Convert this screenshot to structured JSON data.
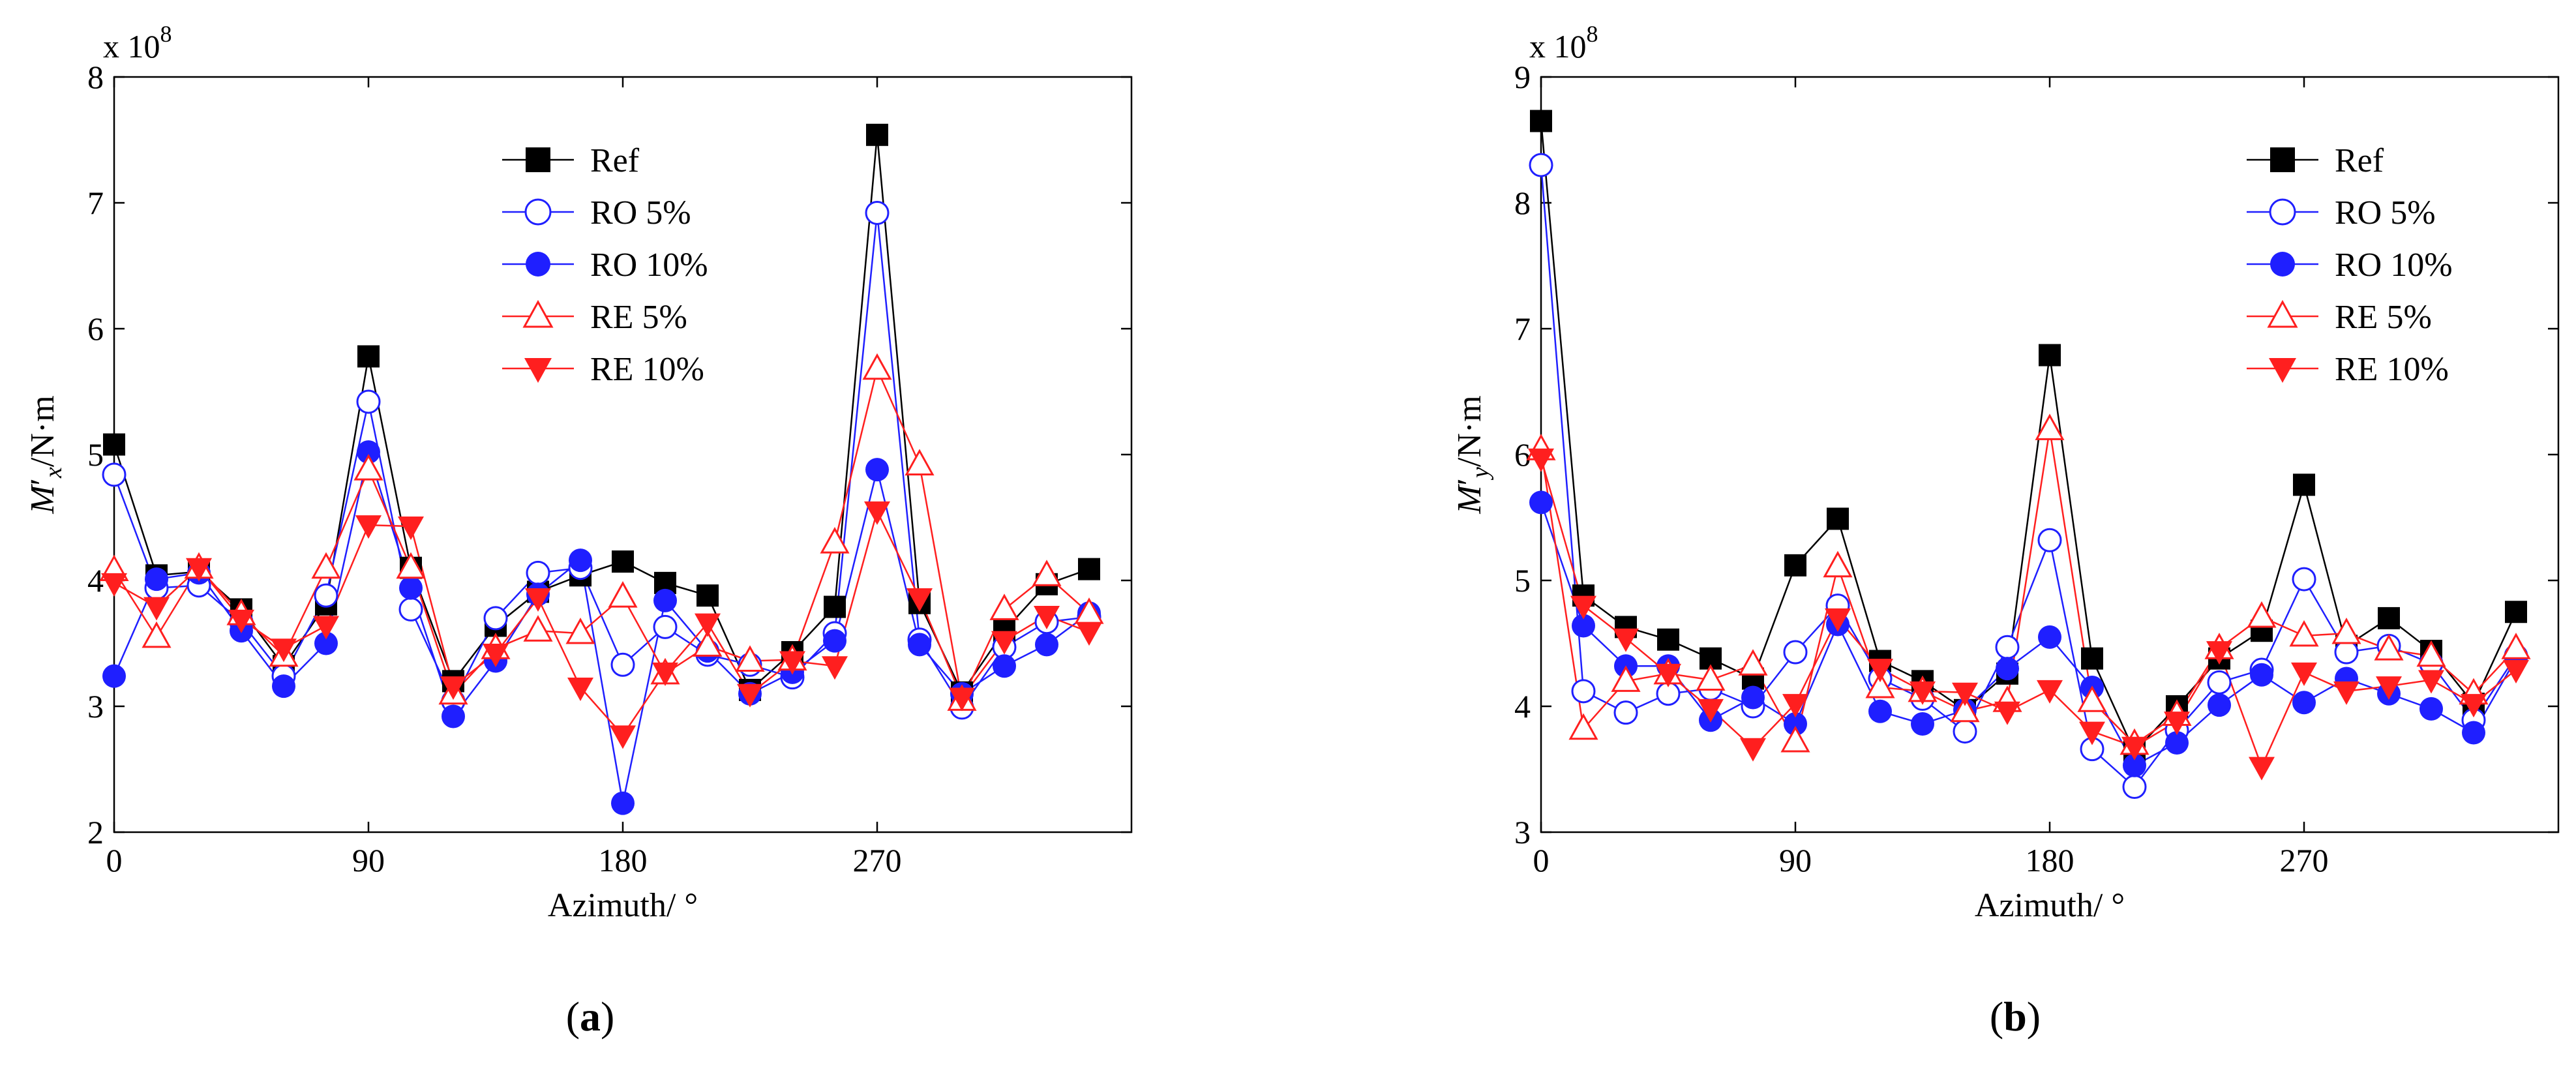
{
  "colors": {
    "ref": "#000000",
    "ro": "#1f1fff",
    "re": "#ff1f1f"
  },
  "markers": {
    "ref": "square-filled",
    "ro5": "circle-open",
    "ro10": "circle-filled",
    "re5": "triangle-up-open",
    "re10": "triangle-down-filled"
  },
  "chart_data": [
    {
      "panel_label_parts": [
        "(",
        "a",
        ")"
      ],
      "type": "line",
      "ylabel_parts": [
        "M",
        "′",
        "x",
        "/N·m"
      ],
      "xlabel": "Azimuth/ °",
      "exponent_base": "x 10",
      "exponent_power": "8",
      "xlim": [
        0,
        360
      ],
      "ylim": [
        2,
        8
      ],
      "x_ticks": [
        0,
        90,
        180,
        270
      ],
      "y_ticks": [
        2,
        3,
        4,
        5,
        6,
        7,
        8
      ],
      "legend_position": "top-center",
      "x": [
        0,
        15,
        30,
        45,
        60,
        75,
        90,
        105,
        120,
        135,
        150,
        165,
        180,
        195,
        210,
        225,
        240,
        255,
        270,
        285,
        300,
        315,
        330,
        345
      ],
      "series": [
        {
          "name": "Ref",
          "color_key": "ref",
          "marker_key": "ref",
          "values": [
            5.08,
            4.04,
            4.07,
            3.77,
            3.32,
            3.81,
            5.78,
            4.1,
            3.2,
            3.64,
            3.91,
            4.04,
            4.15,
            3.98,
            3.88,
            3.13,
            3.43,
            3.79,
            7.54,
            3.82,
            3.11,
            3.6,
            3.97,
            4.09
          ]
        },
        {
          "name": "RO 5%",
          "color_key": "ro",
          "marker_key": "ro5",
          "values": [
            4.84,
            3.94,
            3.96,
            3.67,
            3.24,
            3.88,
            5.42,
            3.77,
            3.04,
            3.7,
            4.06,
            4.1,
            3.33,
            3.63,
            3.41,
            3.33,
            3.23,
            3.58,
            6.92,
            3.53,
            2.99,
            3.47,
            3.67,
            3.71
          ]
        },
        {
          "name": "RO 10%",
          "color_key": "ro",
          "marker_key": "ro10",
          "values": [
            3.24,
            4.01,
            4.06,
            3.6,
            3.16,
            3.5,
            5.02,
            3.94,
            2.92,
            3.36,
            3.89,
            4.16,
            2.23,
            3.84,
            3.44,
            3.1,
            3.27,
            3.52,
            4.88,
            3.49,
            3.1,
            3.32,
            3.49,
            3.74
          ]
        },
        {
          "name": "RE 5%",
          "color_key": "re",
          "marker_key": "re5",
          "values": [
            4.08,
            3.55,
            4.1,
            3.73,
            3.4,
            4.1,
            4.88,
            4.1,
            3.1,
            3.46,
            3.6,
            3.58,
            3.87,
            3.26,
            3.48,
            3.36,
            3.37,
            4.3,
            5.68,
            4.92,
            3.05,
            3.77,
            4.04,
            3.74
          ]
        },
        {
          "name": "RE 10%",
          "color_key": "re",
          "marker_key": "re10",
          "values": [
            3.98,
            3.79,
            4.1,
            3.69,
            3.46,
            3.64,
            4.44,
            4.43,
            3.16,
            3.42,
            3.86,
            3.15,
            2.77,
            3.27,
            3.66,
            3.1,
            3.36,
            3.32,
            4.55,
            3.86,
            3.07,
            3.52,
            3.72,
            3.59
          ]
        }
      ]
    },
    {
      "panel_label_parts": [
        "(",
        "b",
        ")"
      ],
      "type": "line",
      "ylabel_parts": [
        "M",
        "′",
        "y",
        "/N·m"
      ],
      "xlabel": "Azimuth/ °",
      "exponent_base": "x 10",
      "exponent_power": "8",
      "xlim": [
        0,
        360
      ],
      "ylim": [
        3,
        9
      ],
      "x_ticks": [
        0,
        90,
        180,
        270
      ],
      "y_ticks": [
        3,
        4,
        5,
        6,
        7,
        8,
        9
      ],
      "legend_position": "top-right",
      "x": [
        0,
        15,
        30,
        45,
        60,
        75,
        90,
        105,
        120,
        135,
        150,
        165,
        180,
        195,
        210,
        225,
        240,
        255,
        270,
        285,
        300,
        315,
        330,
        345
      ],
      "series": [
        {
          "name": "Ref",
          "color_key": "ref",
          "marker_key": "ref",
          "values": [
            8.65,
            4.88,
            4.63,
            4.53,
            4.38,
            4.22,
            5.12,
            5.49,
            4.36,
            4.2,
            3.97,
            4.26,
            6.79,
            4.38,
            3.64,
            4.0,
            4.38,
            4.6,
            5.76,
            4.48,
            4.7,
            4.44,
            4.02,
            4.75
          ]
        },
        {
          "name": "RO 5%",
          "color_key": "ro",
          "marker_key": "ro5",
          "values": [
            8.3,
            4.12,
            3.95,
            4.1,
            4.14,
            4.0,
            4.43,
            4.8,
            4.22,
            4.06,
            3.8,
            4.47,
            5.32,
            3.66,
            3.36,
            3.81,
            4.19,
            4.29,
            5.01,
            4.43,
            4.48,
            4.34,
            3.89,
            4.4
          ]
        },
        {
          "name": "RO 10%",
          "color_key": "ro",
          "marker_key": "ro10",
          "values": [
            5.62,
            4.64,
            4.32,
            4.32,
            3.89,
            4.07,
            3.86,
            4.65,
            3.96,
            3.86,
            3.97,
            4.3,
            4.55,
            4.15,
            3.53,
            3.71,
            4.01,
            4.25,
            4.03,
            4.22,
            4.1,
            3.98,
            3.79,
            4.38
          ]
        },
        {
          "name": "RE 5%",
          "color_key": "re",
          "marker_key": "re5",
          "values": [
            6.04,
            3.82,
            4.2,
            4.26,
            4.21,
            4.33,
            3.72,
            5.11,
            4.15,
            4.12,
            3.96,
            4.04,
            6.2,
            4.04,
            3.7,
            3.93,
            4.46,
            4.71,
            4.56,
            4.58,
            4.45,
            4.4,
            4.1,
            4.46
          ]
        },
        {
          "name": "RE 10%",
          "color_key": "re",
          "marker_key": "re10",
          "values": [
            5.97,
            4.8,
            4.54,
            4.26,
            3.98,
            3.67,
            4.02,
            4.7,
            4.3,
            4.12,
            4.11,
            3.96,
            4.13,
            3.8,
            3.68,
            3.88,
            4.44,
            3.52,
            4.27,
            4.12,
            4.16,
            4.21,
            4.02,
            4.29
          ]
        }
      ]
    }
  ]
}
